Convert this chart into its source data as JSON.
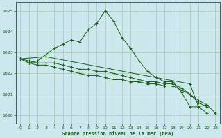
{
  "xlabel": "Graphe pression niveau de la mer (hPa)",
  "bg_color": "#cce8ee",
  "grid_color": "#aaccbb",
  "line_color": "#1a5c1a",
  "ylim": [
    1019.6,
    1025.4
  ],
  "xlim": [
    -0.5,
    23.5
  ],
  "yticks": [
    1020,
    1021,
    1022,
    1023,
    1024,
    1025
  ],
  "xticks": [
    0,
    1,
    2,
    3,
    4,
    5,
    6,
    7,
    8,
    9,
    10,
    11,
    12,
    13,
    14,
    15,
    16,
    17,
    18,
    19,
    20,
    21,
    22,
    23
  ],
  "series": [
    {
      "x": [
        0,
        1,
        2,
        3,
        4,
        5,
        6,
        7,
        8,
        9,
        10,
        11,
        12,
        13,
        14,
        15,
        16,
        17,
        18,
        19,
        20,
        21,
        22
      ],
      "y": [
        1022.7,
        1022.5,
        1022.6,
        1022.9,
        1023.2,
        1023.4,
        1023.6,
        1023.5,
        1024.1,
        1024.4,
        1025.0,
        1024.5,
        1023.7,
        1023.2,
        1022.6,
        1022.1,
        1021.8,
        1021.6,
        1021.6,
        1021.1,
        1020.4,
        1020.4,
        1020.1
      ]
    },
    {
      "x": [
        0,
        1,
        2,
        3,
        4,
        5,
        6,
        7,
        8,
        9,
        10,
        11,
        12,
        13,
        14,
        15,
        16,
        17,
        18,
        19,
        20,
        21,
        22
      ],
      "y": [
        1022.7,
        1022.6,
        1022.5,
        1022.5,
        1022.5,
        1022.4,
        1022.3,
        1022.2,
        1022.2,
        1022.1,
        1022.1,
        1022.0,
        1021.9,
        1021.8,
        1021.7,
        1021.6,
        1021.6,
        1021.5,
        1021.5,
        1021.3,
        1021.0,
        1020.7,
        1020.5
      ]
    },
    {
      "x": [
        0,
        1,
        2,
        3,
        4,
        5,
        6,
        7,
        8,
        9,
        10,
        11,
        12,
        13,
        14,
        15,
        16,
        17,
        18,
        19,
        20,
        21,
        22
      ],
      "y": [
        1022.7,
        1022.5,
        1022.4,
        1022.4,
        1022.3,
        1022.2,
        1022.1,
        1022.0,
        1021.9,
        1021.9,
        1021.8,
        1021.7,
        1021.7,
        1021.6,
        1021.6,
        1021.5,
        1021.5,
        1021.4,
        1021.4,
        1021.2,
        1021.0,
        1020.6,
        1020.4
      ]
    },
    {
      "x": [
        0,
        3,
        16,
        20,
        21,
        22,
        23
      ],
      "y": [
        1022.7,
        1022.8,
        1021.8,
        1021.5,
        1020.4,
        1020.5,
        1020.1
      ]
    }
  ]
}
